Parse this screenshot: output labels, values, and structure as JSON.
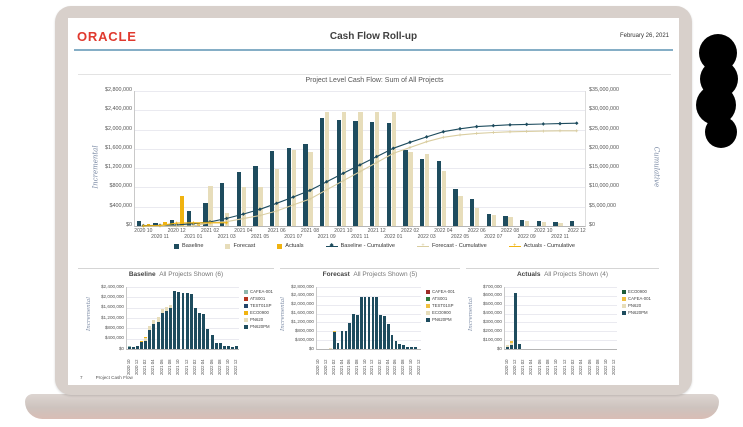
{
  "header": {
    "logo": "ORACLE",
    "title": "Cash Flow Roll-up",
    "date": "February 26, 2021"
  },
  "footer": {
    "page": "7",
    "label": "Project Cash Flow"
  },
  "colors": {
    "oracle_red": "#e03a2f",
    "header_rule": "#85aec6",
    "baseline": "#1e4c5e",
    "forecast": "#e7ddba",
    "actuals": "#f0b310",
    "forecast_line": "#d9cda0",
    "axis_label": "#7d8ca6"
  },
  "chart_data": [
    {
      "type": "bar",
      "title": "Project Level Cash Flow: Sum of All Projects",
      "ylabel_left": "Incremental",
      "ylabel_right": "Cumulative",
      "ylim_left": [
        0,
        2800000
      ],
      "ystep_left": 400000,
      "ylim_right": [
        0,
        35000000
      ],
      "ystep_right": 5000000,
      "grid": true,
      "legend_position": "bottom",
      "categories": [
        "2020 10",
        "2020 11",
        "2020 12",
        "2021 01",
        "2021 02",
        "2021 03",
        "2021 04",
        "2021 05",
        "2021 06",
        "2021 07",
        "2021 08",
        "2021 09",
        "2021 10",
        "2021 11",
        "2021 12",
        "2022 01",
        "2022 02",
        "2022 03",
        "2022 04",
        "2022 05",
        "2022 06",
        "2022 07",
        "2022 08",
        "2022 09",
        "2022 10",
        "2022 11",
        "2022 12"
      ],
      "series": [
        {
          "name": "Baseline",
          "type": "bar",
          "color": "#1e4c5e",
          "values": [
            100000,
            60000,
            120000,
            310000,
            480000,
            890000,
            1130000,
            1250000,
            1550000,
            1620000,
            1710000,
            2250000,
            2190000,
            2180000,
            2160000,
            2140000,
            1570000,
            1390000,
            1340000,
            770000,
            550000,
            250000,
            215000,
            120000,
            110000,
            90000,
            110000
          ]
        },
        {
          "name": "Forecast",
          "type": "bar",
          "color": "#e7ddba",
          "values": [
            0,
            0,
            0,
            30000,
            820000,
            260000,
            800000,
            810000,
            1180000,
            1570000,
            1540000,
            2370000,
            2360000,
            2360000,
            2360000,
            2360000,
            1540000,
            1500000,
            1140000,
            620000,
            380000,
            230000,
            190000,
            100000,
            90000,
            70000,
            0
          ]
        },
        {
          "name": "Actuals",
          "type": "bar",
          "color": "#f0b310",
          "values": [
            40000,
            90000,
            630000,
            60000,
            0,
            0,
            0,
            0,
            0,
            0,
            0,
            0,
            0,
            0,
            0,
            0,
            0,
            0,
            0,
            0,
            0,
            0,
            0,
            0,
            0,
            0,
            0
          ]
        },
        {
          "name": "Baseline - Cumulative",
          "type": "line",
          "marker": "diamond",
          "color": "#1e4c5e",
          "source": "Baseline"
        },
        {
          "name": "Forecast - Cumulative",
          "type": "line",
          "marker": "plus",
          "color": "#d9cda0",
          "source": "Forecast"
        },
        {
          "name": "Actuals - Cumulative",
          "type": "line",
          "marker": "plus",
          "color": "#f0b310",
          "source": "Actuals",
          "end_index": 5
        }
      ]
    },
    {
      "type": "bar",
      "stacked": true,
      "title": "Baseline",
      "subtitle": "All Projects Shown (6)",
      "ylabel": "Incremental",
      "ylim": [
        0,
        2400000
      ],
      "ystep": 400000,
      "xtick_every": 2,
      "legend": [
        {
          "name": "CAFEA-001",
          "color": "#8fb8ae"
        },
        {
          "name": "ATS001",
          "color": "#b5351f"
        },
        {
          "name": "TEST01SP",
          "color": "#22456b"
        },
        {
          "name": "ECO0900",
          "color": "#f0b310"
        },
        {
          "name": "PN620",
          "color": "#e7ddba"
        },
        {
          "name": "PN620PM",
          "color": "#1e4c5e"
        }
      ],
      "series": [
        {
          "name": "PN620PM",
          "color": "#1e4c5e",
          "values": [
            80000,
            60000,
            120000,
            280000,
            320000,
            740000,
            950000,
            1060000,
            1380000,
            1480000,
            1590000,
            2250000,
            2190000,
            2180000,
            2160000,
            2140000,
            1570000,
            1390000,
            1340000,
            770000,
            550000,
            250000,
            215000,
            120000,
            110000,
            90000,
            110000
          ]
        },
        {
          "name": "PN620",
          "color": "#e7ddba",
          "values": [
            0,
            0,
            0,
            0,
            120000,
            150000,
            180000,
            190000,
            170000,
            140000,
            120000,
            0,
            0,
            0,
            0,
            0,
            0,
            0,
            0,
            0,
            0,
            0,
            0,
            0,
            0,
            0,
            0
          ]
        },
        {
          "name": "ECO0900",
          "color": "#f0b310",
          "values": [
            0,
            0,
            0,
            30000,
            40000,
            0,
            0,
            0,
            0,
            0,
            0,
            0,
            0,
            0,
            0,
            0,
            0,
            0,
            0,
            0,
            0,
            0,
            0,
            0,
            0,
            0,
            0
          ]
        },
        {
          "name": "CAFEA-001",
          "color": "#8fb8ae",
          "values": [
            20000,
            0,
            0,
            0,
            0,
            0,
            0,
            0,
            0,
            0,
            0,
            0,
            0,
            0,
            0,
            0,
            0,
            0,
            0,
            0,
            0,
            0,
            0,
            0,
            0,
            0,
            0
          ]
        }
      ]
    },
    {
      "type": "bar",
      "stacked": true,
      "title": "Forecast",
      "subtitle": "All Projects Shown (5)",
      "ylabel": "Incremental",
      "ylim": [
        0,
        2800000
      ],
      "ystep": 400000,
      "xtick_every": 2,
      "legend": [
        {
          "name": "CAFEA-001",
          "color": "#9e2b25"
        },
        {
          "name": "ATS001",
          "color": "#2f7a3d"
        },
        {
          "name": "TEST01SP",
          "color": "#f0c040"
        },
        {
          "name": "ECO0900",
          "color": "#e7ddba"
        },
        {
          "name": "PN620PM",
          "color": "#1e4c5e"
        }
      ],
      "series": [
        {
          "name": "PN620PM",
          "color": "#1e4c5e",
          "values": [
            0,
            0,
            0,
            0,
            780000,
            260000,
            800000,
            810000,
            1180000,
            1570000,
            1540000,
            2370000,
            2360000,
            2360000,
            2360000,
            2360000,
            1540000,
            1500000,
            1140000,
            620000,
            380000,
            230000,
            190000,
            100000,
            90000,
            70000,
            0
          ]
        },
        {
          "name": "ECO0900",
          "color": "#e7ddba",
          "values": [
            0,
            0,
            0,
            30000,
            0,
            0,
            0,
            0,
            0,
            0,
            0,
            0,
            0,
            0,
            0,
            0,
            0,
            0,
            0,
            0,
            0,
            0,
            0,
            0,
            0,
            0,
            0
          ]
        },
        {
          "name": "TEST01SP",
          "color": "#f0c040",
          "values": [
            0,
            0,
            0,
            0,
            40000,
            0,
            0,
            0,
            0,
            0,
            0,
            0,
            0,
            0,
            0,
            0,
            0,
            0,
            0,
            0,
            0,
            0,
            0,
            0,
            0,
            0,
            0
          ]
        }
      ]
    },
    {
      "type": "bar",
      "stacked": true,
      "title": "Actuals",
      "subtitle": "All Projects Shown (4)",
      "ylabel": "Incremental",
      "ylim": [
        0,
        700000
      ],
      "ystep": 100000,
      "xtick_every": 2,
      "legend": [
        {
          "name": "ECO0900",
          "color": "#1e5c38"
        },
        {
          "name": "CAFEA-001",
          "color": "#f0c040"
        },
        {
          "name": "PN620",
          "color": "#e7ddba"
        },
        {
          "name": "PN620PM",
          "color": "#1e4c5e"
        }
      ],
      "series": [
        {
          "name": "PN620PM",
          "color": "#1e4c5e",
          "values": [
            25000,
            45000,
            630000,
            60000,
            0,
            0,
            0,
            0,
            0,
            0,
            0,
            0,
            0,
            0,
            0,
            0,
            0,
            0,
            0,
            0,
            0,
            0,
            0,
            0,
            0,
            0,
            0
          ]
        },
        {
          "name": "PN620",
          "color": "#e7ddba",
          "values": [
            15000,
            20000,
            0,
            0,
            0,
            0,
            0,
            0,
            0,
            0,
            0,
            0,
            0,
            0,
            0,
            0,
            0,
            0,
            0,
            0,
            0,
            0,
            0,
            0,
            0,
            0,
            0
          ]
        },
        {
          "name": "CAFEA-001",
          "color": "#f0c040",
          "values": [
            0,
            25000,
            0,
            0,
            0,
            0,
            0,
            0,
            0,
            0,
            0,
            0,
            0,
            0,
            0,
            0,
            0,
            0,
            0,
            0,
            0,
            0,
            0,
            0,
            0,
            0,
            0
          ]
        }
      ]
    }
  ]
}
